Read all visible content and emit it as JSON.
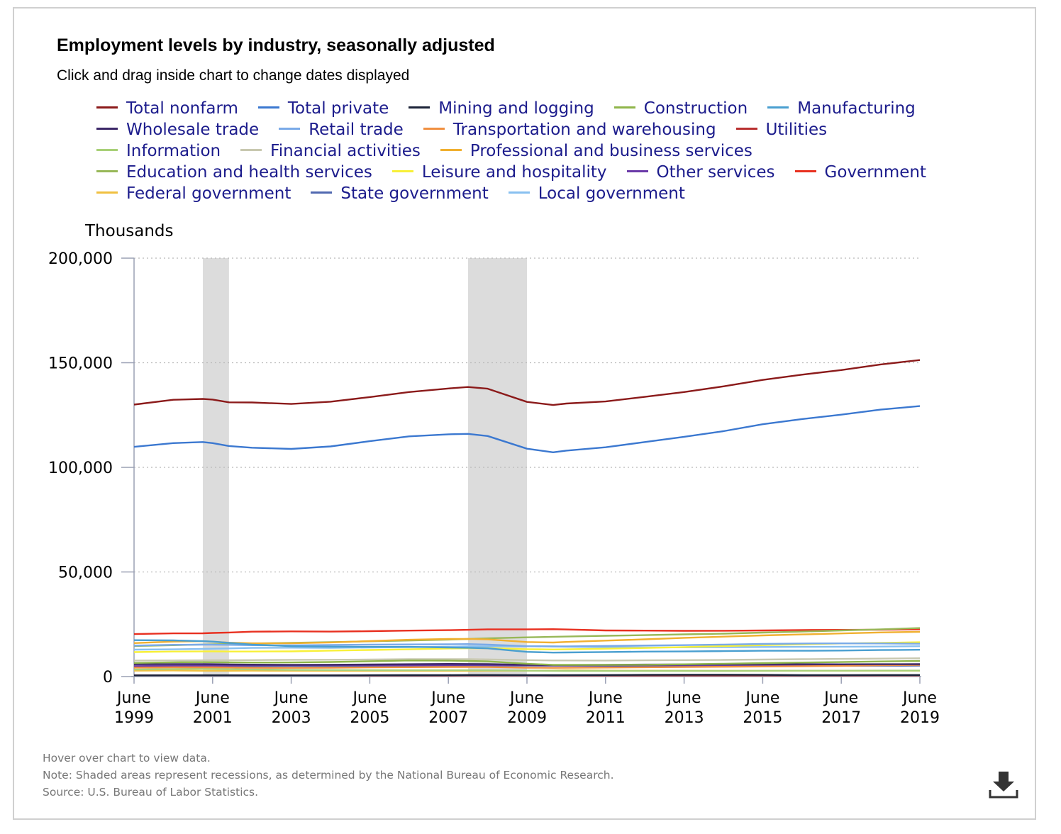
{
  "title": "Employment levels by industry, seasonally adjusted",
  "subtitle": "Click and drag inside chart to change dates displayed",
  "footnotes": {
    "hover": "Hover over chart to view data.",
    "note": "Note: Shaded areas represent recessions, as determined by the National Bureau of Economic Research.",
    "source": "Source: U.S. Bureau of Labor Statistics."
  },
  "download_icon": "download-icon",
  "chart_data": {
    "type": "line",
    "ylabel": "Thousands",
    "ylim": [
      0,
      200000
    ],
    "y_ticks": [
      "0",
      "50,000",
      "100,000",
      "150,000",
      "200,000"
    ],
    "x_ticks": [
      {
        "month": "June",
        "year": "1999"
      },
      {
        "month": "June",
        "year": "2001"
      },
      {
        "month": "June",
        "year": "2003"
      },
      {
        "month": "June",
        "year": "2005"
      },
      {
        "month": "June",
        "year": "2007"
      },
      {
        "month": "June",
        "year": "2009"
      },
      {
        "month": "June",
        "year": "2011"
      },
      {
        "month": "June",
        "year": "2013"
      },
      {
        "month": "June",
        "year": "2015"
      },
      {
        "month": "June",
        "year": "2017"
      },
      {
        "month": "June",
        "year": "2019"
      }
    ],
    "xlim": [
      "1999-06",
      "2019-06"
    ],
    "grid": "horizontal dotted",
    "legend_position": "top",
    "recessions": [
      {
        "start": "2001-03",
        "end": "2001-11"
      },
      {
        "start": "2007-12",
        "end": "2009-06"
      }
    ],
    "x": [
      "1999-06",
      "2000-06",
      "2001-03",
      "2001-06",
      "2001-11",
      "2002-06",
      "2003-06",
      "2004-06",
      "2005-06",
      "2006-06",
      "2007-06",
      "2007-12",
      "2008-06",
      "2009-06",
      "2010-02",
      "2010-06",
      "2011-06",
      "2012-06",
      "2013-06",
      "2014-06",
      "2015-06",
      "2016-06",
      "2017-06",
      "2018-06",
      "2019-06"
    ],
    "series": [
      {
        "name": "Total nonfarm",
        "color": "#8b1a1a",
        "values": [
          130000,
          132300,
          132700,
          132400,
          131100,
          131000,
          130300,
          131400,
          133600,
          136000,
          137700,
          138400,
          137600,
          131300,
          129800,
          130500,
          131500,
          133700,
          136000,
          138700,
          141800,
          144300,
          146500,
          149200,
          151300
        ]
      },
      {
        "name": "Total private",
        "color": "#3b78d0",
        "values": [
          109800,
          111600,
          112100,
          111600,
          110200,
          109400,
          108800,
          110000,
          112500,
          114800,
          115800,
          116000,
          115000,
          108900,
          107200,
          108000,
          109600,
          112100,
          114600,
          117300,
          120600,
          123100,
          125200,
          127600,
          129300
        ]
      },
      {
        "name": "Mining and logging",
        "color": "#1c2338",
        "values": [
          560,
          600,
          610,
          610,
          600,
          580,
          570,
          590,
          630,
          680,
          720,
          740,
          760,
          700,
          680,
          700,
          760,
          830,
          870,
          890,
          800,
          680,
          700,
          740,
          760
        ]
      },
      {
        "name": "Construction",
        "color": "#8fb54a",
        "values": [
          6500,
          6800,
          6870,
          6840,
          6780,
          6710,
          6730,
          6940,
          7330,
          7690,
          7630,
          7490,
          7240,
          6120,
          5600,
          5580,
          5560,
          5640,
          5860,
          6140,
          6450,
          6710,
          6930,
          7230,
          7450
        ]
      },
      {
        "name": "Manufacturing",
        "color": "#4a9fd0",
        "values": [
          17400,
          17300,
          16900,
          16700,
          16100,
          15300,
          14500,
          14300,
          14200,
          14200,
          13900,
          13750,
          13500,
          11800,
          11460,
          11530,
          11730,
          11930,
          12000,
          12170,
          12330,
          12330,
          12440,
          12690,
          12830
        ]
      },
      {
        "name": "Wholesale trade",
        "color": "#3c2868",
        "values": [
          5850,
          5930,
          5920,
          5890,
          5810,
          5690,
          5630,
          5660,
          5770,
          5900,
          6020,
          6010,
          5960,
          5630,
          5510,
          5520,
          5620,
          5720,
          5790,
          5890,
          5920,
          5900,
          5870,
          5900,
          5930
        ]
      },
      {
        "name": "Retail trade",
        "color": "#7aaae8",
        "values": [
          14800,
          15200,
          15250,
          15230,
          15140,
          15000,
          14900,
          15070,
          15280,
          15350,
          15440,
          15530,
          15290,
          14520,
          14420,
          14450,
          14640,
          14860,
          15030,
          15290,
          15600,
          15790,
          15850,
          15820,
          15690
        ]
      },
      {
        "name": "Transportation and warehousing",
        "color": "#f09040",
        "values": [
          4260,
          4400,
          4420,
          4400,
          4330,
          4210,
          4170,
          4240,
          4360,
          4480,
          4560,
          4570,
          4540,
          4250,
          4180,
          4190,
          4300,
          4440,
          4530,
          4670,
          4830,
          4940,
          5130,
          5390,
          5590
        ]
      },
      {
        "name": "Utilities",
        "color": "#b83030",
        "values": [
          610,
          600,
          600,
          600,
          600,
          595,
          580,
          565,
          555,
          550,
          555,
          560,
          563,
          560,
          555,
          555,
          555,
          555,
          550,
          552,
          556,
          557,
          557,
          560,
          565
        ]
      },
      {
        "name": "Information",
        "color": "#a8d078",
        "values": [
          3340,
          3600,
          3690,
          3670,
          3530,
          3410,
          3200,
          3130,
          3060,
          3030,
          3030,
          3020,
          2990,
          2830,
          2740,
          2720,
          2670,
          2680,
          2700,
          2720,
          2770,
          2800,
          2820,
          2840,
          2860
        ]
      },
      {
        "name": "Financial activities",
        "color": "#c8c8b0",
        "values": [
          7650,
          7680,
          7760,
          7780,
          7820,
          7850,
          7990,
          8020,
          8150,
          8330,
          8350,
          8300,
          8220,
          7860,
          7700,
          7690,
          7670,
          7750,
          7870,
          7960,
          8130,
          8290,
          8450,
          8580,
          8740
        ]
      },
      {
        "name": "Professional and business services",
        "color": "#f0b030",
        "values": [
          16000,
          16700,
          16900,
          16650,
          16200,
          15900,
          15900,
          16300,
          16950,
          17600,
          17950,
          18000,
          17750,
          16500,
          16280,
          16550,
          17200,
          17800,
          18500,
          19100,
          19650,
          20150,
          20600,
          21100,
          21400
        ]
      },
      {
        "name": "Education and health services",
        "color": "#98b858",
        "values": [
          14600,
          15000,
          15330,
          15400,
          15570,
          15780,
          16150,
          16470,
          16860,
          17220,
          17650,
          17950,
          18270,
          18750,
          19020,
          19130,
          19500,
          19800,
          20170,
          20500,
          21020,
          21500,
          22050,
          22580,
          23200
        ]
      },
      {
        "name": "Leisure and hospitality",
        "color": "#f8f038",
        "values": [
          11700,
          11950,
          12000,
          12030,
          11980,
          11960,
          12050,
          12400,
          12710,
          13010,
          13410,
          13530,
          13550,
          13100,
          12960,
          13030,
          13320,
          13670,
          14090,
          14560,
          15020,
          15440,
          15820,
          16080,
          16420
        ]
      },
      {
        "name": "Other services",
        "color": "#6a3aa8",
        "values": [
          5000,
          5100,
          5160,
          5170,
          5220,
          5340,
          5430,
          5410,
          5400,
          5430,
          5480,
          5510,
          5530,
          5390,
          5320,
          5330,
          5360,
          5440,
          5460,
          5490,
          5560,
          5610,
          5670,
          5760,
          5850
        ]
      },
      {
        "name": "Government",
        "color": "#e83020",
        "values": [
          20300,
          20650,
          20690,
          20850,
          21050,
          21450,
          21580,
          21480,
          21690,
          21980,
          22180,
          22350,
          22580,
          22590,
          22630,
          22510,
          22040,
          21960,
          21880,
          21910,
          22050,
          22250,
          22300,
          22400,
          22600
        ]
      },
      {
        "name": "Federal government",
        "color": "#f0c040",
        "values": [
          2800,
          2920,
          2770,
          2770,
          2770,
          2800,
          2770,
          2730,
          2730,
          2730,
          2730,
          2750,
          2770,
          2830,
          2870,
          3030,
          2860,
          2820,
          2770,
          2730,
          2750,
          2800,
          2800,
          2800,
          2800
        ]
      },
      {
        "name": "State government",
        "color": "#5068b0",
        "values": [
          4760,
          4800,
          4860,
          4880,
          4920,
          4990,
          5040,
          5010,
          5060,
          5100,
          5160,
          5190,
          5190,
          5220,
          5200,
          5190,
          5160,
          5140,
          5080,
          5070,
          5090,
          5140,
          5150,
          5190,
          5230
        ]
      },
      {
        "name": "Local government",
        "color": "#88c0f0",
        "values": [
          12870,
          13000,
          13230,
          13310,
          13460,
          13700,
          13780,
          13740,
          13890,
          14030,
          14250,
          14390,
          14440,
          14520,
          14420,
          14280,
          14050,
          13940,
          13960,
          14020,
          14120,
          14220,
          14270,
          14350,
          14500
        ]
      }
    ]
  }
}
